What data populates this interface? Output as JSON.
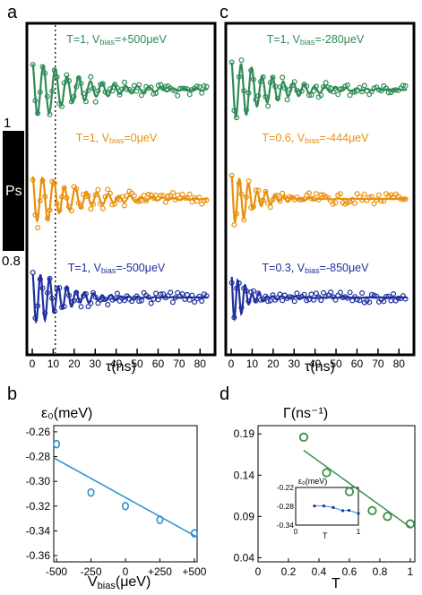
{
  "chart_data": [
    {
      "panel": "a",
      "type": "scatter",
      "xlabel": "τ(ns)",
      "ylabel": "Ps",
      "x_ticks": [
        "0",
        "10",
        "20",
        "30",
        "40",
        "50",
        "60",
        "70",
        "80"
      ],
      "xlim": [
        0,
        85
      ],
      "scale_top": "1",
      "scale_bottom": "0.8",
      "vline_x": 11,
      "series": [
        {
          "label_main": "T=1, V",
          "label_sub": "bias",
          "label_val": "=+500μeV",
          "color": "#2e8b57",
          "decay": 22,
          "period": 5.6,
          "amp": 0.5
        },
        {
          "label_main": "T=1, V",
          "label_sub": "bias",
          "label_val": "=0μeV",
          "color": "#e8900c",
          "decay": 20,
          "period": 5.2,
          "amp": 0.45
        },
        {
          "label_main": "T=1, V",
          "label_sub": "bias",
          "label_val": "=-500μeV",
          "color": "#1f2f9e",
          "decay": 14,
          "period": 4.2,
          "amp": 0.5
        }
      ]
    },
    {
      "panel": "c",
      "type": "scatter",
      "xlabel": "τ(ns)",
      "x_ticks": [
        "0",
        "10",
        "20",
        "30",
        "40",
        "50",
        "60",
        "70",
        "80"
      ],
      "xlim": [
        0,
        85
      ],
      "series": [
        {
          "label_main": "T=1, V",
          "label_sub": "bias",
          "label_val": "=-280μeV",
          "color": "#2e8b57",
          "decay": 18,
          "period": 5.0,
          "amp": 0.55
        },
        {
          "label_main": "T=0.6, V",
          "label_sub": "bias",
          "label_val": "=-444μeV",
          "color": "#e8900c",
          "decay": 10,
          "period": 4.2,
          "amp": 0.5
        },
        {
          "label_main": "T=0.3, V",
          "label_sub": "bias",
          "label_val": "=-850μeV",
          "color": "#1f2f9e",
          "decay": 6,
          "period": 3.4,
          "amp": 0.5
        }
      ]
    },
    {
      "panel": "b",
      "type": "scatter",
      "ylabel": "ε₀(meV)",
      "xlabel_main": "V",
      "xlabel_sub": "bias",
      "xlabel_unit": "(μeV)",
      "x_ticks": [
        -500,
        -250,
        0,
        250,
        500
      ],
      "x_tick_labels": [
        "-500",
        "-250",
        "0",
        "+250",
        "+500"
      ],
      "y_ticks": [
        -0.26,
        -0.28,
        -0.3,
        -0.32,
        -0.34,
        -0.36
      ],
      "y_tick_labels": [
        "-0.26",
        "-0.28",
        "-0.30",
        "-0.32",
        "-0.34",
        "-0.36"
      ],
      "xlim": [
        -520,
        520
      ],
      "ylim": [
        -0.365,
        -0.255
      ],
      "points": [
        {
          "x": -500,
          "y": -0.27
        },
        {
          "x": -250,
          "y": -0.309
        },
        {
          "x": 0,
          "y": -0.32
        },
        {
          "x": 250,
          "y": -0.331
        },
        {
          "x": 500,
          "y": -0.342
        }
      ],
      "fit": [
        {
          "x": -520,
          "y": -0.281
        },
        {
          "x": 520,
          "y": -0.345
        }
      ],
      "color": "#2a8fd0"
    },
    {
      "panel": "d",
      "type": "scatter",
      "ylabel": "Γ(ns⁻¹)",
      "xlabel": "T",
      "x_ticks": [
        0,
        0.2,
        0.4,
        0.6,
        0.8,
        1
      ],
      "x_tick_labels": [
        "0",
        "0.2",
        "0.4",
        "0.6",
        "0.8",
        "1"
      ],
      "y_ticks": [
        0.19,
        0.14,
        0.09,
        0.04
      ],
      "y_tick_labels": [
        "0.19",
        "0.14",
        "0.09",
        "0.04"
      ],
      "xlim": [
        0,
        1.03
      ],
      "ylim": [
        0.035,
        0.2
      ],
      "points": [
        {
          "x": 0.3,
          "y": 0.186
        },
        {
          "x": 0.45,
          "y": 0.143
        },
        {
          "x": 0.6,
          "y": 0.12
        },
        {
          "x": 0.75,
          "y": 0.097
        },
        {
          "x": 0.85,
          "y": 0.09
        },
        {
          "x": 1.0,
          "y": 0.081
        }
      ],
      "fit": [
        {
          "x": 0.3,
          "y": 0.17
        },
        {
          "x": 1.0,
          "y": 0.077
        }
      ],
      "color": "#3a8f4a",
      "inset": {
        "ylabel": "ε₀(meV)",
        "xlabel": "T",
        "y_tick_labels": [
          "-0.22",
          "-0.28",
          "-0.34"
        ],
        "x_tick_labels": [
          "0",
          "1"
        ],
        "points": [
          {
            "x": 0.3,
            "y": -0.279
          },
          {
            "x": 0.45,
            "y": -0.279
          },
          {
            "x": 0.6,
            "y": -0.284
          },
          {
            "x": 0.75,
            "y": -0.294
          },
          {
            "x": 0.85,
            "y": -0.293
          },
          {
            "x": 1.0,
            "y": -0.303
          }
        ]
      }
    }
  ],
  "panel_letters": {
    "a": "a",
    "b": "b",
    "c": "c",
    "d": "d"
  }
}
